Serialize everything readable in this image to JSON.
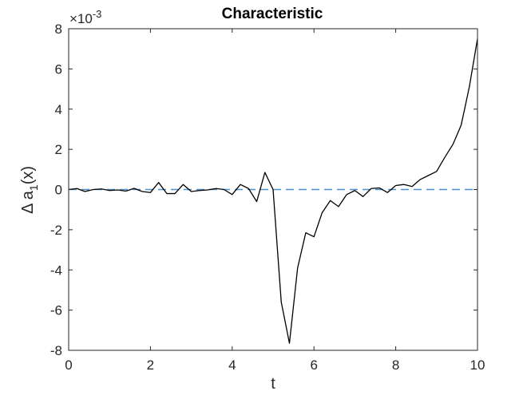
{
  "chart_data": {
    "type": "line",
    "title": "Characteristic",
    "xlabel": "t",
    "ylabel_prefix": "Δ a",
    "ylabel_sub": "1",
    "ylabel_suffix": "(x)",
    "y_exponent_base": "×10",
    "y_exponent_power": "-3",
    "xlim": [
      0,
      10
    ],
    "ylim": [
      -8,
      8
    ],
    "xticks": [
      "0",
      "2",
      "4",
      "6",
      "8",
      "10"
    ],
    "yticks": [
      "-8",
      "-6",
      "-4",
      "-2",
      "0",
      "2",
      "4",
      "6",
      "8"
    ],
    "grid": false,
    "colors": {
      "series": "#000000",
      "reference": "#4f8fc8",
      "axes": "#262626"
    },
    "series": [
      {
        "x": [
          0,
          0.2,
          0.4,
          0.6,
          0.8,
          1.0,
          1.2,
          1.4,
          1.6,
          1.8,
          2.0,
          2.2,
          2.4,
          2.6,
          2.8,
          3.0,
          3.2,
          3.4,
          3.6,
          3.8,
          4.0,
          4.2,
          4.4,
          4.6,
          4.8,
          5.0,
          5.2,
          5.4,
          5.6,
          5.8,
          6.0,
          6.2,
          6.4,
          6.6,
          6.8,
          7.0,
          7.2,
          7.4,
          7.6,
          7.8,
          8.0,
          8.2,
          8.4,
          8.6,
          8.8,
          9.0,
          9.2,
          9.4,
          9.6,
          9.8,
          10.0
        ],
        "values": [
          0,
          0.05,
          -0.1,
          0,
          0.03,
          -0.05,
          -0.02,
          -0.08,
          0.06,
          -0.1,
          -0.15,
          0.35,
          -0.2,
          -0.2,
          0.25,
          -0.1,
          -0.05,
          -0.02,
          0.05,
          0,
          -0.25,
          0.25,
          0.05,
          -0.6,
          0.85,
          0,
          -5.6,
          -7.65,
          -3.9,
          -2.15,
          -2.35,
          -1.15,
          -0.55,
          -0.85,
          -0.25,
          -0.05,
          -0.35,
          0.05,
          0.08,
          -0.15,
          0.2,
          0.25,
          0.15,
          0.5,
          0.7,
          0.9,
          1.6,
          2.25,
          3.2,
          5.1,
          7.5
        ]
      },
      {
        "x": [
          0,
          10
        ],
        "values": [
          0,
          0
        ],
        "style": "dashed"
      }
    ]
  }
}
